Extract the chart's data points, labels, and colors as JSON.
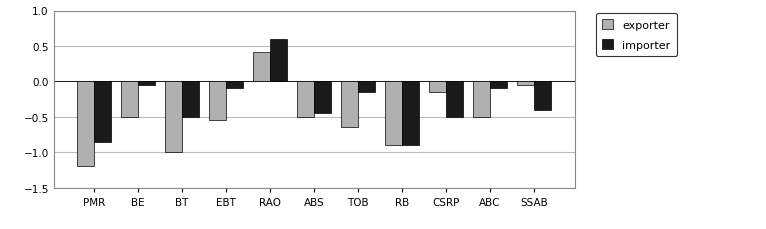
{
  "categories": [
    "PMR",
    "BE",
    "BT",
    "EBT",
    "RAO",
    "ABS",
    "TOB",
    "RB",
    "CSRP",
    "ABC",
    "SSAB"
  ],
  "exporter": [
    -1.2,
    -0.5,
    -1.0,
    -0.55,
    0.42,
    -0.5,
    -0.65,
    -0.9,
    -0.15,
    -0.5,
    -0.05
  ],
  "importer": [
    -0.85,
    -0.05,
    -0.5,
    -0.1,
    0.6,
    -0.45,
    -0.15,
    -0.9,
    -0.5,
    -0.1,
    -0.4
  ],
  "exporter_color": "#b0b0b0",
  "importer_color": "#1a1a1a",
  "ylim": [
    -1.5,
    1.0
  ],
  "yticks": [
    -1.5,
    -1.0,
    -0.5,
    0,
    0.5,
    1.0
  ],
  "legend_labels": [
    "exporter",
    "importer"
  ],
  "bar_width": 0.38,
  "background_color": "#ffffff",
  "grid_color": "#bbbbbb",
  "tick_fontsize": 7.5,
  "legend_fontsize": 8
}
